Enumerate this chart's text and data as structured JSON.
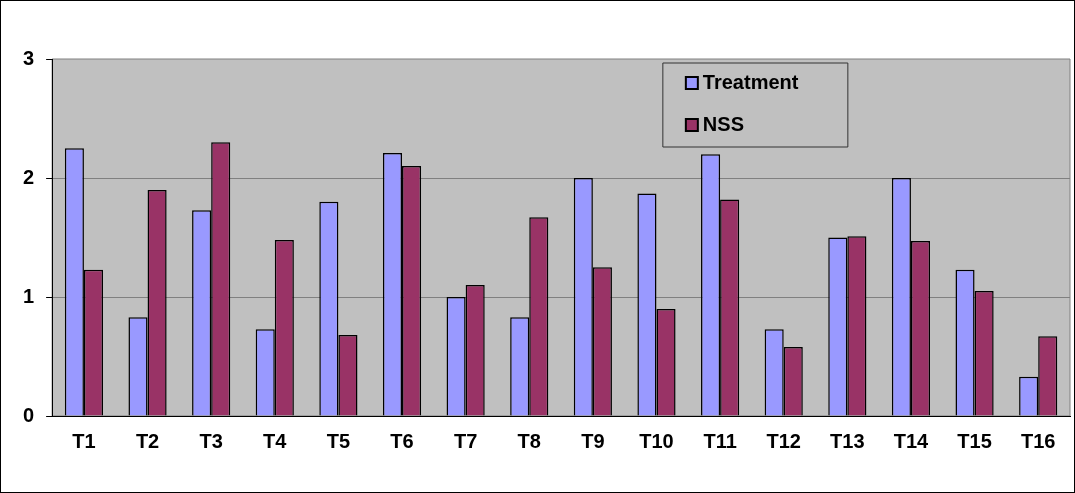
{
  "chart_data": {
    "type": "bar",
    "categories": [
      "T1",
      "T2",
      "T3",
      "T4",
      "T5",
      "T6",
      "T7",
      "T8",
      "T9",
      "T10",
      "T11",
      "T12",
      "T13",
      "T14",
      "T15",
      "T16"
    ],
    "series": [
      {
        "name": "Treatment",
        "color": "#9999ff",
        "values": [
          2.25,
          0.83,
          1.73,
          0.73,
          1.8,
          2.21,
          1.0,
          0.83,
          2.0,
          1.87,
          2.2,
          0.73,
          1.5,
          2.0,
          1.23,
          0.33
        ]
      },
      {
        "name": "NSS",
        "color": "#993366",
        "values": [
          1.23,
          1.9,
          2.3,
          1.48,
          0.68,
          2.1,
          1.1,
          1.67,
          1.25,
          0.9,
          1.82,
          0.58,
          1.51,
          1.47,
          1.05,
          0.67
        ]
      }
    ],
    "ylim": [
      0,
      3
    ],
    "yticks": [
      0,
      1,
      2,
      3
    ],
    "grid": "y",
    "legend": "top right"
  }
}
